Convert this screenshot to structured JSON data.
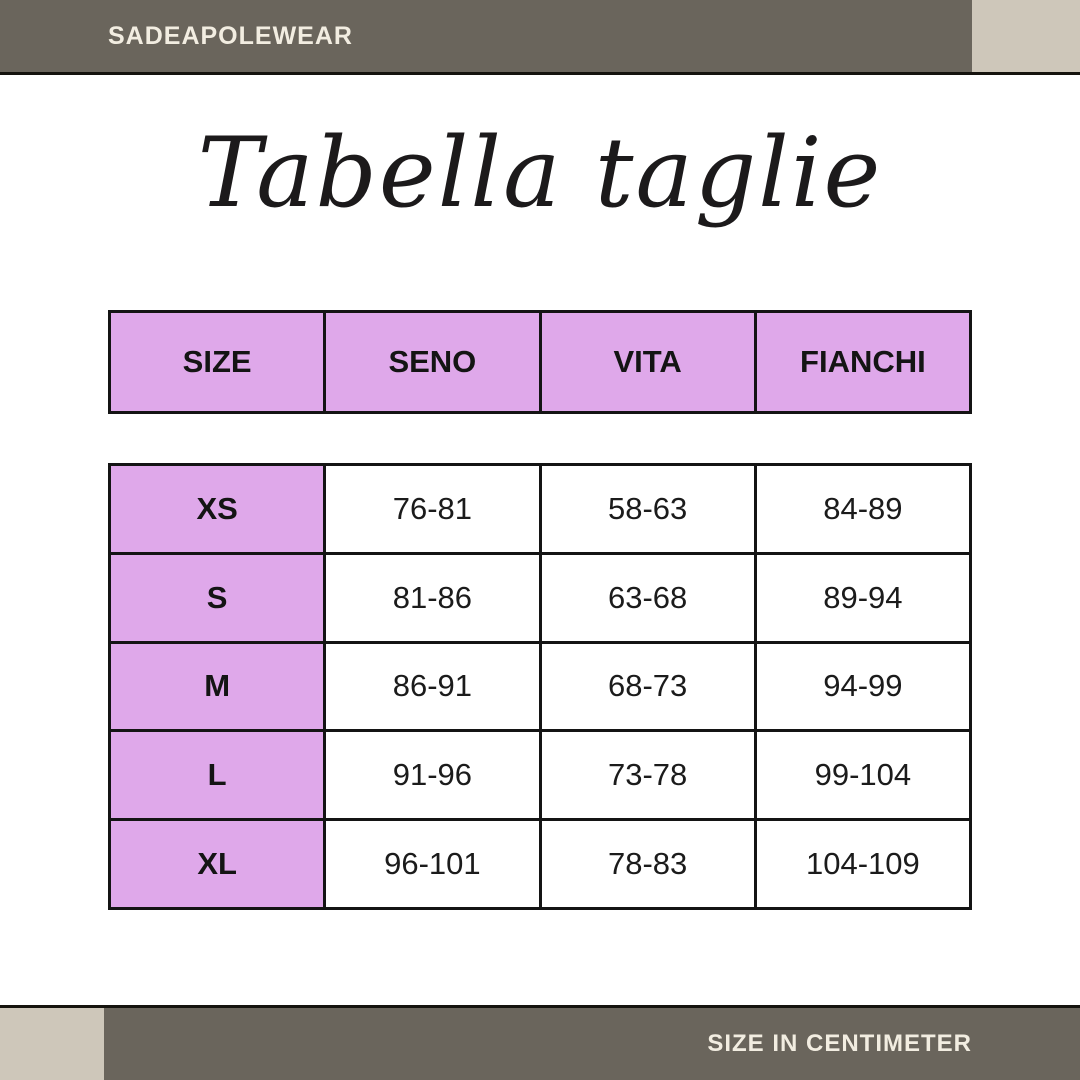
{
  "brand": "SADEAPOLEWEAR",
  "title": "Tabella taglie",
  "footer_note": "SIZE IN CENTIMETER",
  "colors": {
    "bar_olive": "#6a655c",
    "corner_beige": "#cec7ba",
    "header_purple": "#dfa8ea",
    "table_border": "#141414",
    "bar_text_cream": "#f2ede1"
  },
  "chart_data": {
    "type": "table",
    "title": "Tabella taglie",
    "units": "centimeter",
    "columns": [
      "SIZE",
      "SENO",
      "VITA",
      "FIANCHI"
    ],
    "rows": [
      [
        "XS",
        "76-81",
        "58-63",
        "84-89"
      ],
      [
        "S",
        "81-86",
        "63-68",
        "89-94"
      ],
      [
        "M",
        "86-91",
        "68-73",
        "94-99"
      ],
      [
        "L",
        "91-96",
        "73-78",
        "99-104"
      ],
      [
        "XL",
        "96-101",
        "78-83",
        "104-109"
      ]
    ]
  }
}
